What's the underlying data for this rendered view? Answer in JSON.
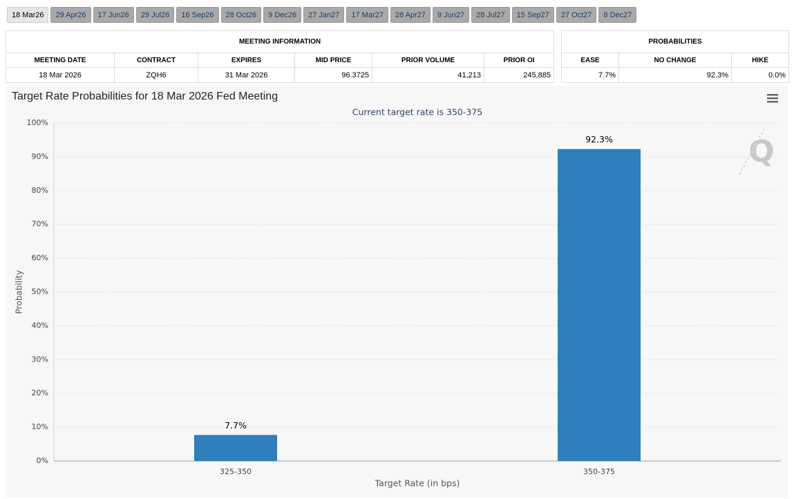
{
  "tabs": [
    "18 Mar26",
    "29 Apr26",
    "17 Jun26",
    "29 Jul26",
    "16 Sep26",
    "28 Oct26",
    "9 Dec26",
    "27 Jan27",
    "17 Mar27",
    "28 Apr27",
    "9 Jun27",
    "28 Jul27",
    "15 Sep27",
    "27 Oct27",
    "8 Dec27"
  ],
  "meeting_table": {
    "title": "MEETING INFORMATION",
    "headers": [
      "MEETING DATE",
      "CONTRACT",
      "EXPIRES",
      "MID PRICE",
      "PRIOR VOLUME",
      "PRIOR OI"
    ],
    "rows": [
      [
        "18 Mar 2026",
        "ZQH6",
        "31 Mar 2026",
        "96.3725",
        "41,213",
        "245,885"
      ]
    ]
  },
  "probabilities_table": {
    "title": "PROBABILITIES",
    "headers": [
      "EASE",
      "NO CHANGE",
      "HIKE"
    ],
    "rows": [
      [
        "7.7%",
        "92.3%",
        "0.0%"
      ]
    ]
  },
  "chart_data": {
    "type": "bar",
    "title": "Target Rate Probabilities for 18 Mar 2026 Fed Meeting",
    "subtitle": "Current target rate is 350-375",
    "x_label": "Target Rate (in bps)",
    "y_label": "Probability",
    "categories": [
      "325-350",
      "350-375"
    ],
    "values": [
      7.7,
      92.3
    ],
    "value_labels": [
      "7.7%",
      "92.3%"
    ],
    "color": "#2e7fbb",
    "ylim": [
      0,
      100
    ],
    "yticks": [
      {
        "value": 0,
        "label": "0%"
      },
      {
        "value": 10,
        "label": "10%"
      },
      {
        "value": 20,
        "label": "20%"
      },
      {
        "value": 30,
        "label": "30%"
      },
      {
        "value": 40,
        "label": "40%"
      },
      {
        "value": 50,
        "label": "50%"
      },
      {
        "value": 60,
        "label": "60%"
      },
      {
        "value": 70,
        "label": "70%"
      },
      {
        "value": 80,
        "label": "80%"
      },
      {
        "value": 90,
        "label": "90%"
      },
      {
        "value": 100,
        "label": "100%"
      }
    ],
    "grid": true
  }
}
